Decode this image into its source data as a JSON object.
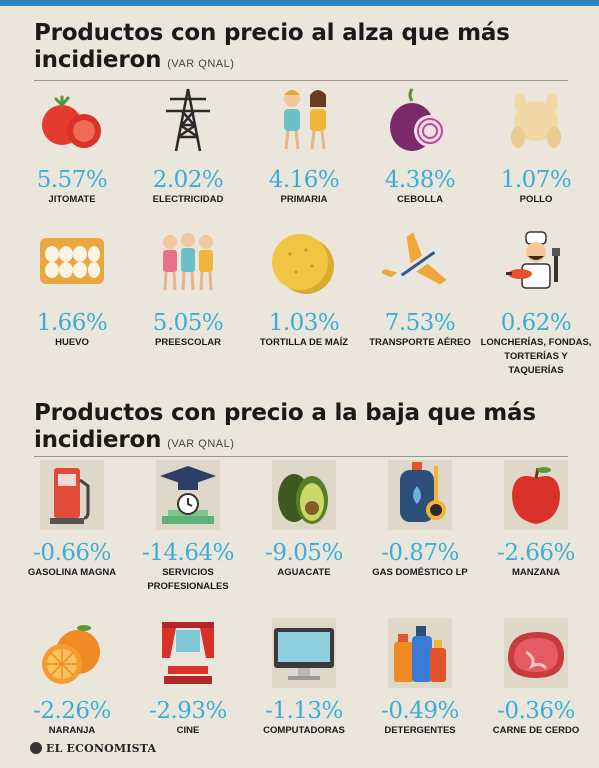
{
  "section_up": {
    "title_line1": "Productos con precio al alza que más",
    "title_line2": "incidieron",
    "subtitle": "(VAR QNAL)"
  },
  "section_down": {
    "title_line1": "Productos con precio a la baja que más",
    "title_line2": "incidieron",
    "subtitle": "(VAR QNAL)"
  },
  "up_items": [
    {
      "value": "5.57%",
      "label": "JITOMATE",
      "icon": "tomato-icon"
    },
    {
      "value": "2.02%",
      "label": "ELECTRICIDAD",
      "icon": "power-tower-icon"
    },
    {
      "value": "4.16%",
      "label": "PRIMARIA",
      "icon": "students-icon"
    },
    {
      "value": "4.38%",
      "label": "CEBOLLA",
      "icon": "onion-icon"
    },
    {
      "value": "1.07%",
      "label": "POLLO",
      "icon": "chicken-icon"
    },
    {
      "value": "1.66%",
      "label": "HUEVO",
      "icon": "egg-carton-icon"
    },
    {
      "value": "5.05%",
      "label": "PREESCOLAR",
      "icon": "kids-icon"
    },
    {
      "value": "1.03%",
      "label": "TORTILLA DE MAÍZ",
      "icon": "tortilla-icon"
    },
    {
      "value": "7.53%",
      "label": "TRANSPORTE AÉREO",
      "icon": "airplane-icon"
    },
    {
      "value": "0.62%",
      "label": "LONCHERÍAS, FONDAS, TORTERÍAS Y TAQUERÍAS",
      "icon": "cook-icon"
    }
  ],
  "down_items": [
    {
      "value": "-0.66%",
      "label": "GASOLINA MAGNA",
      "icon": "fuel-pump-icon"
    },
    {
      "value": "-14.64%",
      "label": "SERVICIOS PROFESIONALES",
      "icon": "graduation-icon"
    },
    {
      "value": "-9.05%",
      "label": "AGUACATE",
      "icon": "avocado-icon"
    },
    {
      "value": "-0.87%",
      "label": "GAS DOMÉSTICO LP",
      "icon": "gas-tank-icon"
    },
    {
      "value": "-2.66%",
      "label": "MANZANA",
      "icon": "apple-icon"
    },
    {
      "value": "-2.26%",
      "label": "NARANJA",
      "icon": "orange-icon"
    },
    {
      "value": "-2.93%",
      "label": "CINE",
      "icon": "cinema-icon"
    },
    {
      "value": "-1.13%",
      "label": "COMPUTADORAS",
      "icon": "computer-icon"
    },
    {
      "value": "-0.49%",
      "label": "DETERGENTES",
      "icon": "detergent-icon"
    },
    {
      "value": "-0.36%",
      "label": "CARNE DE CERDO",
      "icon": "pork-icon"
    }
  ],
  "footer": {
    "brand": "EL ECONOMISTA"
  },
  "colors": {
    "value": "#3aaed8",
    "background": "#ebe6db",
    "accent_bar": "#2e86c1"
  }
}
